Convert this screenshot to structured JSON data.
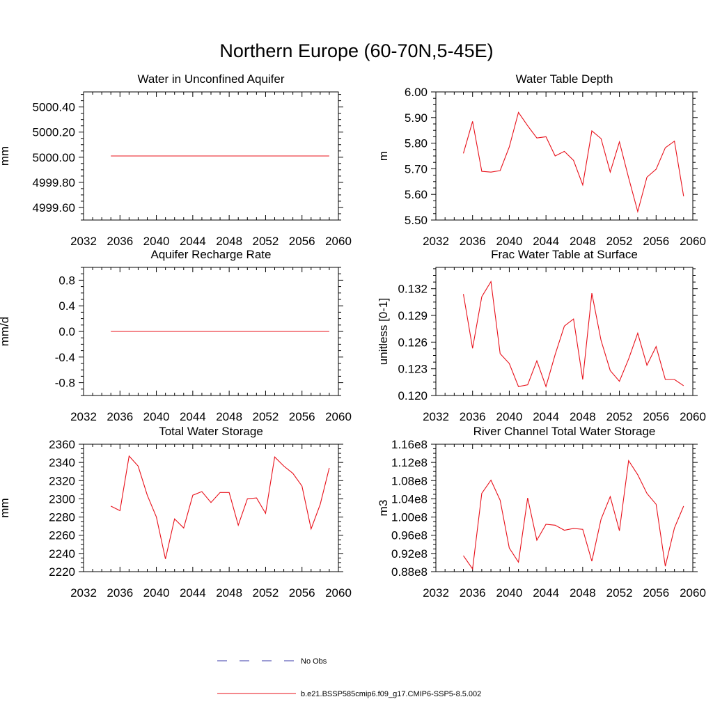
{
  "figure": {
    "title": "Northern Europe (60-70N,5-45E)"
  },
  "legend": {
    "items": [
      {
        "label": "No Obs",
        "color": "#3a3aa8",
        "style": "dashed"
      },
      {
        "label": "b.e21.BSSP585cmip6.f09_g17.CMIP6-SSP5-8.5.002",
        "color": "#e8101a",
        "style": "solid"
      }
    ]
  },
  "chart_data": [
    {
      "type": "line",
      "title": "Water in Unconfined Aquifer",
      "ylabel": "mm",
      "xlim": [
        2032,
        2060
      ],
      "ylim": [
        4999.5,
        5000.52
      ],
      "xticks": [
        2032,
        2036,
        2040,
        2044,
        2048,
        2052,
        2056,
        2060
      ],
      "yticks": [
        4999.6,
        4999.8,
        5000.0,
        5000.2,
        5000.4
      ],
      "ytick_labels": [
        "4999.60",
        "4999.80",
        "5000.00",
        "5000.20",
        "5000.40"
      ],
      "series": [
        {
          "color": "#e8101a",
          "x": [
            2035,
            2036,
            2037,
            2038,
            2039,
            2040,
            2041,
            2042,
            2043,
            2044,
            2045,
            2046,
            2047,
            2048,
            2049,
            2050,
            2051,
            2052,
            2053,
            2054,
            2055,
            2056,
            2057,
            2058,
            2059
          ],
          "y": [
            5000.01,
            5000.01,
            5000.01,
            5000.01,
            5000.01,
            5000.01,
            5000.01,
            5000.01,
            5000.01,
            5000.01,
            5000.01,
            5000.01,
            5000.01,
            5000.01,
            5000.01,
            5000.01,
            5000.01,
            5000.01,
            5000.01,
            5000.01,
            5000.01,
            5000.01,
            5000.01,
            5000.01,
            5000.01
          ]
        }
      ]
    },
    {
      "type": "line",
      "title": "Water Table Depth",
      "ylabel": "m",
      "xlim": [
        2032,
        2060
      ],
      "ylim": [
        5.5,
        6.0
      ],
      "xticks": [
        2032,
        2036,
        2040,
        2044,
        2048,
        2052,
        2056,
        2060
      ],
      "yticks": [
        5.5,
        5.6,
        5.7,
        5.8,
        5.9,
        6.0
      ],
      "ytick_labels": [
        "5.50",
        "5.60",
        "5.70",
        "5.80",
        "5.90",
        "6.00"
      ],
      "series": [
        {
          "color": "#e8101a",
          "x": [
            2035,
            2036,
            2037,
            2038,
            2039,
            2040,
            2041,
            2042,
            2043,
            2044,
            2045,
            2046,
            2047,
            2048,
            2049,
            2050,
            2051,
            2052,
            2053,
            2054,
            2055,
            2056,
            2057,
            2058,
            2059
          ],
          "y": [
            5.76,
            5.885,
            5.69,
            5.687,
            5.693,
            5.785,
            5.92,
            5.868,
            5.82,
            5.825,
            5.75,
            5.768,
            5.733,
            5.637,
            5.848,
            5.818,
            5.687,
            5.805,
            5.665,
            5.533,
            5.667,
            5.698,
            5.782,
            5.808,
            5.593
          ]
        }
      ]
    },
    {
      "type": "line",
      "title": "Aquifer Recharge Rate",
      "ylabel": "mm/d",
      "xlim": [
        2032,
        2060
      ],
      "ylim": [
        -1.0,
        1.0
      ],
      "xticks": [
        2032,
        2036,
        2040,
        2044,
        2048,
        2052,
        2056,
        2060
      ],
      "yticks": [
        -0.8,
        -0.4,
        0.0,
        0.4,
        0.8
      ],
      "ytick_labels": [
        "-0.8",
        "-0.4",
        "0.0",
        "0.4",
        "0.8"
      ],
      "series": [
        {
          "color": "#e8101a",
          "x": [
            2035,
            2036,
            2037,
            2038,
            2039,
            2040,
            2041,
            2042,
            2043,
            2044,
            2045,
            2046,
            2047,
            2048,
            2049,
            2050,
            2051,
            2052,
            2053,
            2054,
            2055,
            2056,
            2057,
            2058,
            2059
          ],
          "y": [
            0.0,
            0.0,
            0.0,
            0.0,
            0.0,
            0.0,
            0.0,
            0.0,
            0.0,
            0.0,
            0.0,
            0.0,
            0.0,
            0.0,
            0.0,
            0.0,
            0.0,
            0.0,
            0.0,
            0.0,
            0.0,
            0.0,
            0.0,
            0.0,
            0.0
          ]
        }
      ]
    },
    {
      "type": "line",
      "title": "Frac Water Table at Surface",
      "ylabel": "unitless [0-1]",
      "xlim": [
        2032,
        2060
      ],
      "ylim": [
        0.12,
        0.1344
      ],
      "xticks": [
        2032,
        2036,
        2040,
        2044,
        2048,
        2052,
        2056,
        2060
      ],
      "yticks": [
        0.12,
        0.123,
        0.126,
        0.129,
        0.132
      ],
      "ytick_labels": [
        "0.120",
        "0.123",
        "0.126",
        "0.129",
        "0.132"
      ],
      "series": [
        {
          "color": "#e8101a",
          "x": [
            2035,
            2036,
            2037,
            2038,
            2039,
            2040,
            2041,
            2042,
            2043,
            2044,
            2045,
            2046,
            2047,
            2048,
            2049,
            2050,
            2051,
            2052,
            2053,
            2054,
            2055,
            2056,
            2057,
            2058,
            2059
          ],
          "y": [
            0.1314,
            0.1253,
            0.1311,
            0.1328,
            0.1247,
            0.1236,
            0.121,
            0.1212,
            0.1239,
            0.121,
            0.1246,
            0.1278,
            0.1286,
            0.1218,
            0.1315,
            0.1262,
            0.1228,
            0.1216,
            0.1241,
            0.127,
            0.1234,
            0.1255,
            0.1218,
            0.1218,
            0.1211
          ]
        }
      ]
    },
    {
      "type": "line",
      "title": "Total Water Storage",
      "ylabel": "mm",
      "xlim": [
        2032,
        2060
      ],
      "ylim": [
        2220,
        2360
      ],
      "xticks": [
        2032,
        2036,
        2040,
        2044,
        2048,
        2052,
        2056,
        2060
      ],
      "yticks": [
        2220,
        2240,
        2260,
        2280,
        2300,
        2320,
        2340,
        2360
      ],
      "ytick_labels": [
        "2220",
        "2240",
        "2260",
        "2280",
        "2300",
        "2320",
        "2340",
        "2360"
      ],
      "series": [
        {
          "color": "#e8101a",
          "x": [
            2035,
            2036,
            2037,
            2038,
            2039,
            2040,
            2041,
            2042,
            2043,
            2044,
            2045,
            2046,
            2047,
            2048,
            2049,
            2050,
            2051,
            2052,
            2053,
            2054,
            2055,
            2056,
            2057,
            2058,
            2059
          ],
          "y": [
            2292,
            2287,
            2347,
            2336,
            2304,
            2280,
            2234,
            2278,
            2268,
            2304,
            2308,
            2296,
            2307,
            2307,
            2271,
            2300,
            2301,
            2284,
            2346,
            2336,
            2328,
            2314,
            2267,
            2294,
            2334
          ]
        }
      ]
    },
    {
      "type": "line",
      "title": "River Channel Total Water Storage",
      "ylabel": "m3",
      "xlim": [
        2032,
        2060
      ],
      "ylim": [
        0.88,
        1.16
      ],
      "xticks": [
        2032,
        2036,
        2040,
        2044,
        2048,
        2052,
        2056,
        2060
      ],
      "yticks": [
        0.88,
        0.92,
        0.96,
        1.0,
        1.04,
        1.08,
        1.12,
        1.16
      ],
      "ytick_labels": [
        "0.88e8",
        "0.92e8",
        "0.96e8",
        "1.00e8",
        "1.04e8",
        "1.08e8",
        "1.12e8",
        "1.16e8"
      ],
      "series": [
        {
          "color": "#e8101a",
          "x": [
            2035,
            2036,
            2037,
            2038,
            2039,
            2040,
            2041,
            2042,
            2043,
            2044,
            2045,
            2046,
            2047,
            2048,
            2049,
            2050,
            2051,
            2052,
            2053,
            2054,
            2055,
            2056,
            2057,
            2058,
            2059
          ],
          "y": [
            0.915,
            0.886,
            1.052,
            1.081,
            1.037,
            0.932,
            0.901,
            1.042,
            0.949,
            0.984,
            0.982,
            0.971,
            0.975,
            0.973,
            0.903,
            0.995,
            1.045,
            0.97,
            1.124,
            1.093,
            1.052,
            1.028,
            0.892,
            0.976,
            1.024
          ]
        }
      ]
    }
  ]
}
